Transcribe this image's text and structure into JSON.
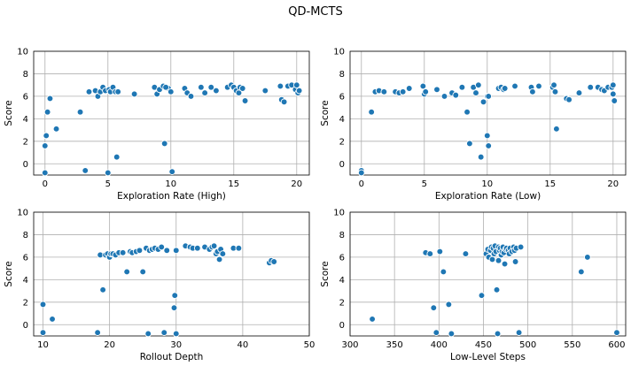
{
  "title": "QD-MCTS",
  "chart_data": [
    {
      "type": "scatter",
      "title": "",
      "xlabel": "Exploration Rate (High)",
      "ylabel": "Score",
      "xlim": [
        -0.9,
        21
      ],
      "ylim": [
        -1,
        10
      ],
      "xticks": [
        0,
        5,
        10,
        15,
        20
      ],
      "yticks": [
        0,
        2,
        4,
        6,
        8,
        10
      ],
      "grid": true,
      "x": [
        0,
        0,
        0.1,
        0.2,
        0.4,
        0.9,
        2.8,
        3.2,
        3.5,
        4.0,
        4.2,
        4.4,
        4.6,
        4.8,
        5.0,
        5.1,
        5.2,
        5.4,
        5.6,
        5.7,
        5.8,
        7.1,
        8.7,
        8.9,
        9.1,
        9.4,
        9.5,
        9.8,
        10.1,
        9.6,
        10.0,
        11.1,
        11.3,
        11.6,
        12.4,
        12.7,
        13.2,
        13.6,
        14.5,
        14.8,
        15.0,
        15.2,
        15.4,
        15.5,
        15.7,
        15.9,
        17.5,
        18.7,
        18.8,
        19.0,
        19.3,
        19.6,
        19.9,
        20.0,
        20.1,
        20.2
      ],
      "y": [
        -0.8,
        1.6,
        2.5,
        4.6,
        5.8,
        3.1,
        4.6,
        -0.6,
        6.4,
        6.5,
        6.0,
        6.4,
        6.8,
        6.5,
        -0.8,
        6.6,
        6.4,
        6.8,
        6.4,
        0.6,
        6.4,
        6.2,
        6.8,
        6.2,
        6.6,
        6.9,
        1.8,
        6.7,
        -0.7,
        6.8,
        6.4,
        6.7,
        6.3,
        6.0,
        6.8,
        6.3,
        6.8,
        6.5,
        6.8,
        7.0,
        6.8,
        6.5,
        6.3,
        6.8,
        6.7,
        5.6,
        6.5,
        6.9,
        5.7,
        5.5,
        6.9,
        7.0,
        6.6,
        7.0,
        6.3,
        6.5
      ]
    },
    {
      "type": "scatter",
      "title": "",
      "xlabel": "Exploration Rate (Low)",
      "ylabel": "Score",
      "xlim": [
        -0.9,
        21
      ],
      "ylim": [
        -1,
        10
      ],
      "xticks": [
        0,
        5,
        10,
        15,
        20
      ],
      "yticks": [
        0,
        2,
        4,
        6,
        8,
        10
      ],
      "grid": true,
      "x": [
        0,
        0,
        0.8,
        1.1,
        1.4,
        1.8,
        2.7,
        3.0,
        3.3,
        3.8,
        4.9,
        5.0,
        5.1,
        6.0,
        6.6,
        7.2,
        7.5,
        8.0,
        8.4,
        8.6,
        8.9,
        9.1,
        9.3,
        9.5,
        9.7,
        10.0,
        10.0,
        10.1,
        10.1,
        10.9,
        11.1,
        11.3,
        11.4,
        12.2,
        13.5,
        13.6,
        14.1,
        15.2,
        15.3,
        15.4,
        15.5,
        16.3,
        16.5,
        17.3,
        18.2,
        18.8,
        19.1,
        19.3,
        19.6,
        19.9,
        20.0,
        20.0,
        20.1
      ],
      "y": [
        -0.6,
        -0.8,
        4.6,
        6.4,
        6.5,
        6.4,
        6.4,
        6.3,
        6.4,
        6.7,
        6.9,
        6.2,
        6.4,
        6.6,
        6.0,
        6.3,
        6.1,
        6.8,
        4.6,
        1.8,
        6.8,
        6.3,
        7.0,
        0.6,
        5.5,
        6.0,
        2.5,
        1.6,
        6.0,
        6.7,
        6.8,
        6.6,
        6.7,
        6.9,
        6.8,
        6.4,
        6.9,
        6.8,
        7.0,
        6.4,
        3.1,
        5.8,
        5.7,
        6.3,
        6.8,
        6.8,
        6.6,
        6.5,
        6.8,
        6.8,
        7.0,
        6.2,
        5.6
      ]
    },
    {
      "type": "scatter",
      "title": "",
      "xlabel": "Rollout Depth",
      "ylabel": "Score",
      "xlim": [
        8.6,
        50
      ],
      "ylim": [
        -1,
        10
      ],
      "xticks": [
        10,
        20,
        30,
        40,
        50
      ],
      "yticks": [
        0,
        2,
        4,
        6,
        8,
        10
      ],
      "grid": true,
      "x": [
        10,
        10,
        11.4,
        18.2,
        18.6,
        19.0,
        19.4,
        19.7,
        20.0,
        20.2,
        20.5,
        20.9,
        21.4,
        22.0,
        22.6,
        23.1,
        23.4,
        24.0,
        24.5,
        25.0,
        25.5,
        25.8,
        26.0,
        26.4,
        26.8,
        27.3,
        27.8,
        28.2,
        28.6,
        29.7,
        29.8,
        30.0,
        30.0,
        31.4,
        32.1,
        32.5,
        33.2,
        34.3,
        35.0,
        35.4,
        35.7,
        36.0,
        36.2,
        36.5,
        36.7,
        37.0,
        38.6,
        39.4,
        44.0,
        44.3,
        44.7
      ],
      "y": [
        1.8,
        -0.7,
        0.5,
        -0.7,
        6.2,
        3.1,
        6.2,
        6.3,
        6.0,
        6.3,
        6.3,
        6.2,
        6.4,
        6.4,
        4.7,
        6.5,
        6.4,
        6.5,
        6.6,
        4.7,
        6.8,
        -0.8,
        6.6,
        6.7,
        6.8,
        6.7,
        6.9,
        -0.7,
        6.6,
        1.5,
        2.6,
        -0.8,
        6.6,
        7.0,
        6.9,
        6.8,
        6.8,
        6.9,
        6.7,
        6.9,
        7.0,
        6.3,
        6.5,
        5.8,
        6.7,
        6.3,
        6.8,
        6.8,
        5.5,
        5.7,
        5.6
      ]
    },
    {
      "type": "scatter",
      "title": "",
      "xlabel": "Low-Level Steps",
      "ylabel": "Score",
      "xlim": [
        300,
        610
      ],
      "ylim": [
        -1,
        10
      ],
      "xticks": [
        300,
        350,
        400,
        450,
        500,
        550,
        600
      ],
      "yticks": [
        0,
        2,
        4,
        6,
        8,
        10
      ],
      "grid": true,
      "x": [
        325,
        385,
        390,
        394,
        397,
        401,
        405,
        411,
        414,
        430,
        448,
        453,
        455,
        456,
        458,
        459,
        460,
        461,
        462,
        463,
        464,
        465,
        466,
        467,
        467,
        468,
        469,
        470,
        471,
        472,
        473,
        474,
        475,
        476,
        478,
        479,
        480,
        482,
        484,
        485,
        486,
        487,
        490,
        492,
        560,
        567,
        600
      ],
      "y": [
        0.5,
        6.4,
        6.3,
        1.5,
        -0.7,
        6.5,
        4.7,
        1.8,
        -0.8,
        6.3,
        2.6,
        6.3,
        6.7,
        6.0,
        6.6,
        6.9,
        5.8,
        6.8,
        6.3,
        7.0,
        6.5,
        3.1,
        -0.8,
        6.9,
        5.7,
        6.6,
        6.8,
        6.2,
        6.5,
        6.9,
        6.4,
        5.4,
        6.7,
        6.8,
        6.6,
        6.3,
        6.8,
        6.5,
        6.9,
        6.6,
        5.6,
        6.8,
        -0.7,
        6.9,
        4.7,
        6.0,
        -0.7
      ]
    }
  ]
}
